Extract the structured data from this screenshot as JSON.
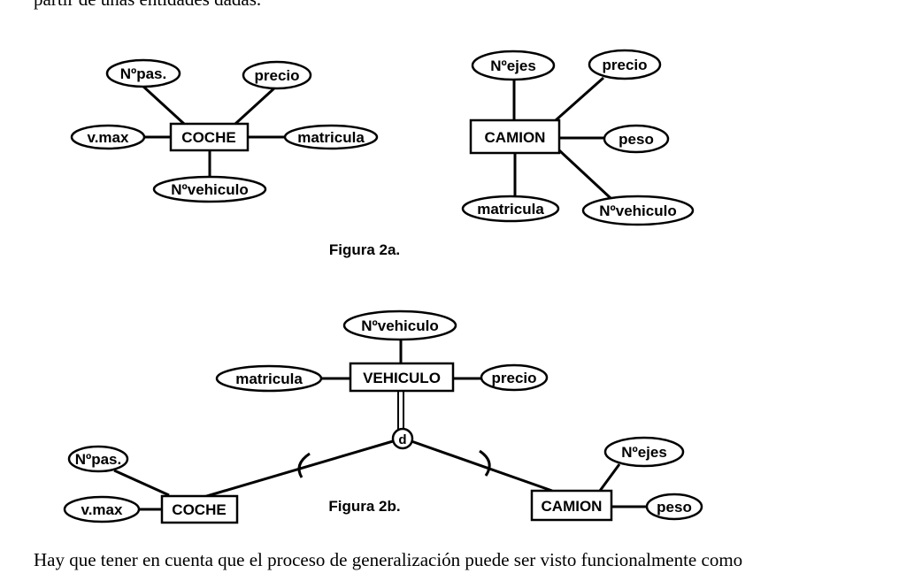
{
  "text": {
    "top": "partir de unas entidades dadas.",
    "bottom": "Hay que tener en cuenta que el proceso de generalización puede ser visto funcionalmente como"
  },
  "fig2a": {
    "caption": "Figura 2a.",
    "coche": {
      "entity": "COCHE",
      "attributes": {
        "npas": "Nºpas.",
        "precio": "precio",
        "vmax": "v.max",
        "matricula": "matricula",
        "nvehiculo": "Nºvehiculo"
      }
    },
    "camion": {
      "entity": "CAMION",
      "attributes": {
        "nejes": "Nºejes",
        "precio": "precio",
        "peso": "peso",
        "matricula": "matricula",
        "nvehiculo": "Nºvehiculo"
      }
    }
  },
  "fig2b": {
    "caption": "Figura 2b.",
    "vehiculo": {
      "entity": "VEHICULO",
      "attributes": {
        "nvehiculo": "Nºvehiculo",
        "matricula": "matricula",
        "precio": "precio"
      }
    },
    "disjoint": "d",
    "coche": {
      "entity": "COCHE",
      "attributes": {
        "npas": "Nºpas.",
        "vmax": "v.max"
      }
    },
    "camion": {
      "entity": "CAMION",
      "attributes": {
        "nejes": "Nºejes",
        "peso": "peso"
      }
    }
  }
}
